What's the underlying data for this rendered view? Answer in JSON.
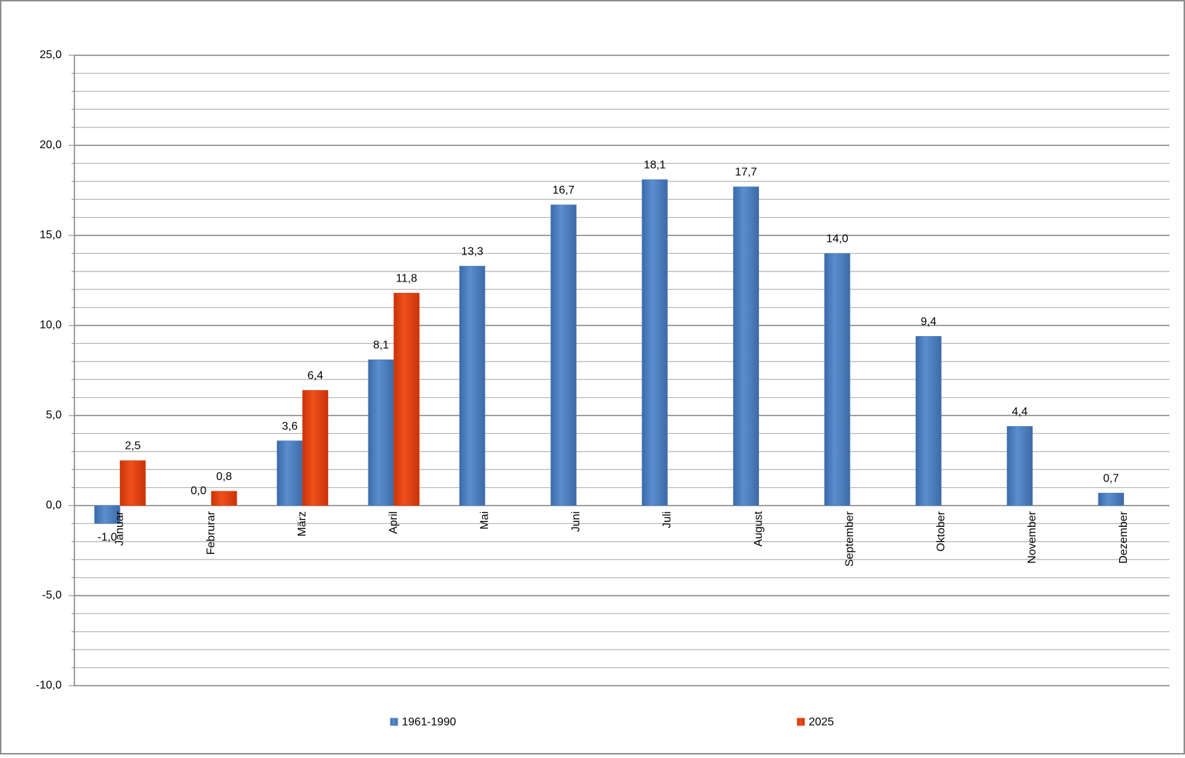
{
  "chart_data": {
    "type": "bar",
    "categories": [
      "Januar",
      "Februrar",
      "März",
      "April",
      "Mai",
      "Juni",
      "Juli",
      "August",
      "September",
      "Oktober",
      "November",
      "Dezember"
    ],
    "series": [
      {
        "name": "1961-1990",
        "color": "#4f81bd",
        "values": [
          -1.0,
          0.0,
          3.6,
          8.1,
          13.3,
          16.7,
          18.1,
          17.7,
          14.0,
          9.4,
          4.4,
          0.7
        ],
        "value_labels": [
          "-1,0",
          "0,0",
          "3,6",
          "8,1",
          "13,3",
          "16,7",
          "18,1",
          "17,7",
          "14,0",
          "9,4",
          "4,4",
          "0,7"
        ]
      },
      {
        "name": "2025",
        "color": "#e8410f",
        "values": [
          2.5,
          0.8,
          6.4,
          11.8,
          null,
          null,
          null,
          null,
          null,
          null,
          null,
          null
        ],
        "value_labels": [
          "2,5",
          "0,8",
          "6,4",
          "11,8",
          null,
          null,
          null,
          null,
          null,
          null,
          null,
          null
        ]
      }
    ],
    "ylim": [
      -10,
      25
    ],
    "yticks": [
      {
        "value": -10,
        "label": "-10,0"
      },
      {
        "value": -5,
        "label": "-5,0"
      },
      {
        "value": 0,
        "label": "0,0"
      },
      {
        "value": 5,
        "label": "5,0"
      },
      {
        "value": 10,
        "label": "10,0"
      },
      {
        "value": 15,
        "label": "15,0"
      },
      {
        "value": 20,
        "label": "20,0"
      },
      {
        "value": 25,
        "label": "25,0"
      }
    ],
    "minor_yticks": [
      -9,
      -8,
      -7,
      -6,
      -4,
      -3,
      -2,
      -1,
      1,
      2,
      3,
      4,
      6,
      7,
      8,
      9,
      11,
      12,
      13,
      14,
      16,
      17,
      18,
      19,
      21,
      22,
      23,
      24
    ],
    "grid": true
  }
}
